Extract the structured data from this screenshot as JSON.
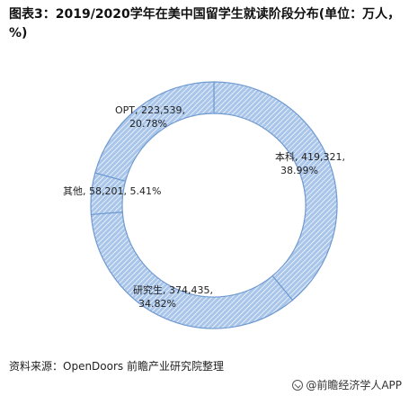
{
  "title": "图表3：2019/2020学年在美中国留学生就读阶段分布(单位：万人，%)",
  "source": "资料来源：OpenDoors 前瞻产业研究院整理",
  "brand": "@前瞻经济学人APP",
  "colors": {
    "fill": "#a9c6ea",
    "stroke": "#6f9ad0",
    "hatch": "#ffffff",
    "text": "#222222"
  },
  "chart_data": {
    "type": "pie",
    "style": "donut",
    "title": "图表3：2019/2020学年在美中国留学生就读阶段分布(单位：万人，%)",
    "slices": [
      {
        "label": "本科",
        "value": 419321,
        "percent": 38.99,
        "line1": "本科, 419,321,",
        "line2": "38.99%"
      },
      {
        "label": "研究生",
        "value": 374435,
        "percent": 34.82,
        "line1": "研究生, 374,435,",
        "line2": "34.82%"
      },
      {
        "label": "其他",
        "value": 58201,
        "percent": 5.41,
        "line1": "其他, 58,201, 5.41%",
        "line2": ""
      },
      {
        "label": "OPT",
        "value": 223539,
        "percent": 20.78,
        "line1": "OPT, 223,539,",
        "line2": "20.78%"
      }
    ]
  }
}
